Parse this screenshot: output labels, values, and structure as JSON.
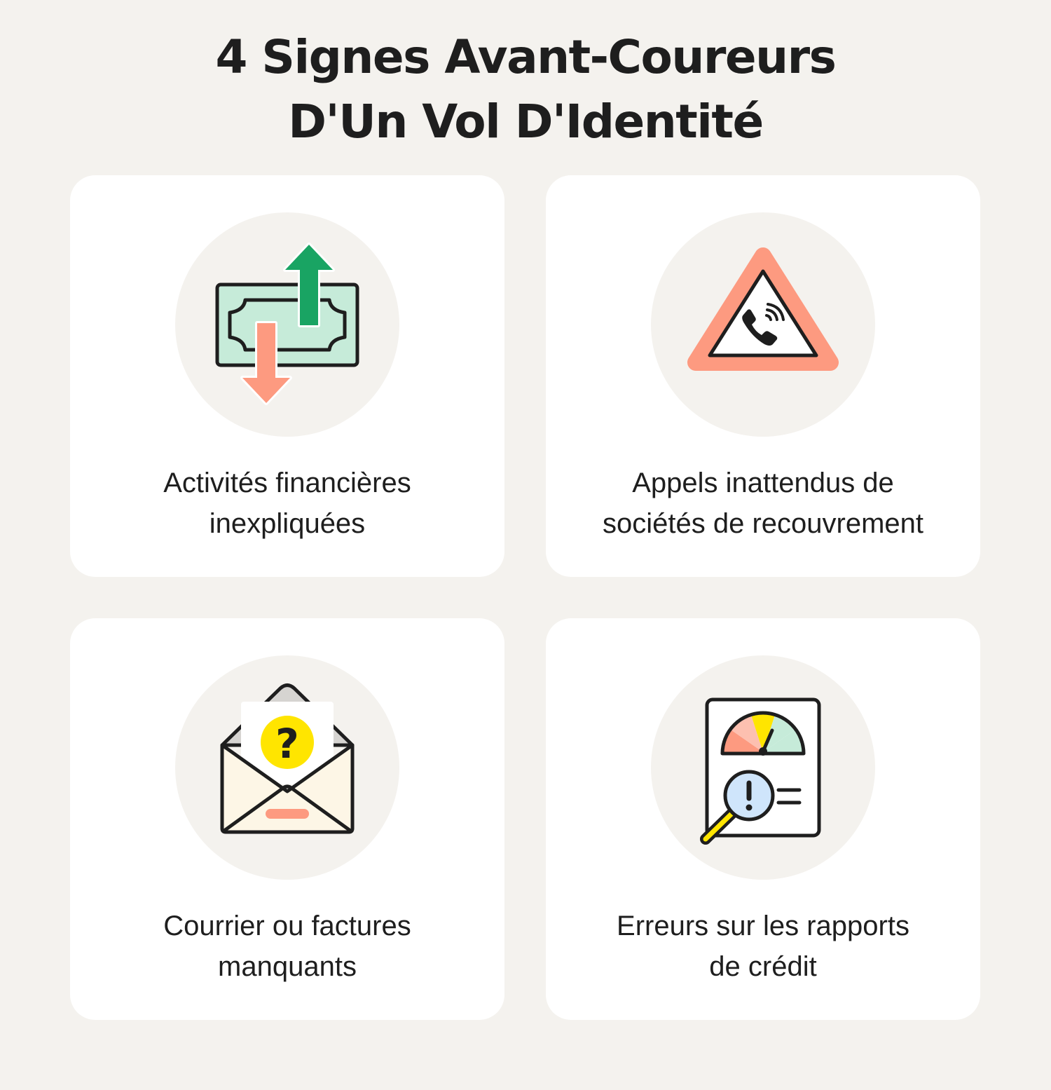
{
  "header": {
    "title_line1": "4 Signes Avant-Coureurs",
    "title_line2": "D'Un Vol D'Identité"
  },
  "colors": {
    "background": "#f4f2ee",
    "card": "#ffffff",
    "icon_circle": "#f4f2ee",
    "text": "#1e1e1e",
    "green": "#19a463",
    "mint": "#c6ebd9",
    "salmon": "#fd9a80",
    "yellow": "#ffe500",
    "light_blue": "#cfe5fb",
    "cream": "#fdf6e6"
  },
  "cards": [
    {
      "icon": "money-transfer-icon",
      "label_line1": "Activités financières",
      "label_line2": "inexpliquées"
    },
    {
      "icon": "warning-phone-call-icon",
      "label_line1": "Appels inattendus de",
      "label_line2": "sociétés de recouvrement"
    },
    {
      "icon": "mail-question-icon",
      "label_line1": "Courrier ou factures",
      "label_line2": "manquants"
    },
    {
      "icon": "credit-report-alert-icon",
      "label_line1": "Erreurs sur les rapports",
      "label_line2": "de crédit"
    }
  ]
}
